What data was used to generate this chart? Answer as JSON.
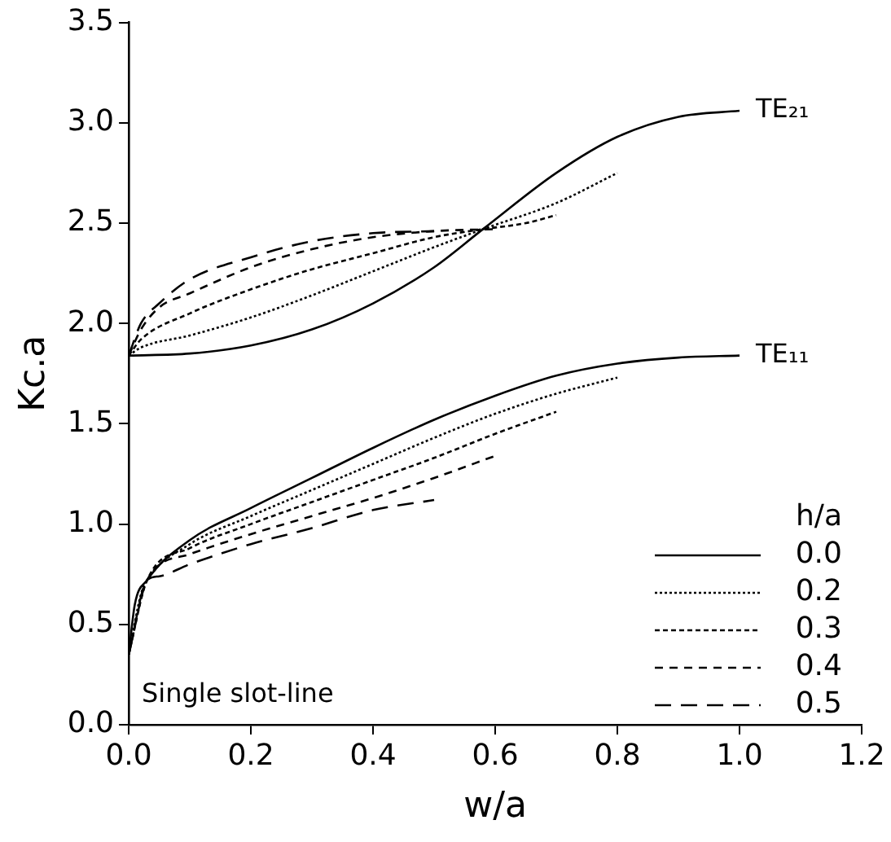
{
  "chart_data": {
    "type": "line",
    "xlabel": "w/a",
    "ylabel": "Kc.a",
    "legend_title": "h/a",
    "legend": "bottom right",
    "grid": false,
    "marker": "none",
    "xlim": [
      0,
      1.2
    ],
    "xticks": [
      {
        "value": 0,
        "label": "0.0"
      },
      {
        "value": 0.2,
        "label": "0.2"
      },
      {
        "value": 0.4,
        "label": "0.4"
      },
      {
        "value": 0.6,
        "label": "0.6"
      },
      {
        "value": 0.8,
        "label": "0.8"
      },
      {
        "value": 1,
        "label": "1.0"
      },
      {
        "value": 1.2,
        "label": "1.2"
      }
    ],
    "ylim": [
      0,
      3.5
    ],
    "yticks": [
      {
        "value": 0,
        "label": "0.0"
      },
      {
        "value": 0.5,
        "label": "0.5"
      },
      {
        "value": 1,
        "label": "1.0"
      },
      {
        "value": 1.5,
        "label": "1.5"
      },
      {
        "value": 2,
        "label": "2.0"
      },
      {
        "value": 2.5,
        "label": "2.5"
      },
      {
        "value": 3,
        "label": "3.0"
      },
      {
        "value": 3.5,
        "label": "3.5"
      }
    ],
    "annotations": [
      {
        "text": "TE₂₁",
        "x": 1.0,
        "y": 3.06
      },
      {
        "text": "TE₁₁",
        "x": 1.0,
        "y": 1.84
      },
      "Single slot-line"
    ],
    "series": [
      {
        "name": "0.0",
        "color": "#000000",
        "line_style": "solid",
        "x": [
          0,
          0.1,
          0.2,
          0.3,
          0.4,
          0.5,
          0.58,
          0.7,
          0.8,
          0.9,
          1.0
        ],
        "values": [
          1.84,
          1.85,
          1.89,
          1.97,
          2.1,
          2.28,
          2.47,
          2.75,
          2.93,
          3.03,
          3.06
        ]
      },
      {
        "name": "0.2",
        "color": "#000000",
        "line_style": "dotted",
        "x": [
          0,
          0.02,
          0.1,
          0.2,
          0.3,
          0.4,
          0.5,
          0.58,
          0.7,
          0.8
        ],
        "values": [
          1.84,
          1.88,
          1.94,
          2.03,
          2.14,
          2.26,
          2.38,
          2.47,
          2.6,
          2.75
        ]
      },
      {
        "name": "0.3",
        "color": "#000000",
        "line_style": "dotted",
        "x": [
          0,
          0.02,
          0.1,
          0.2,
          0.3,
          0.4,
          0.5,
          0.58,
          0.65,
          0.7
        ],
        "values": [
          1.84,
          1.92,
          2.05,
          2.17,
          2.27,
          2.35,
          2.43,
          2.47,
          2.5,
          2.54
        ]
      },
      {
        "name": "0.4",
        "color": "#000000",
        "line_style": "dashed",
        "x": [
          0,
          0.02,
          0.05,
          0.1,
          0.2,
          0.3,
          0.4,
          0.5,
          0.6
        ],
        "values": [
          1.84,
          1.97,
          2.08,
          2.15,
          2.28,
          2.37,
          2.43,
          2.46,
          2.47
        ]
      },
      {
        "name": "0.5",
        "color": "#000000",
        "line_style": "dashed",
        "x": [
          0,
          0.02,
          0.05,
          0.1,
          0.2,
          0.3,
          0.4,
          0.5
        ],
        "values": [
          1.84,
          2.0,
          2.1,
          2.22,
          2.33,
          2.41,
          2.45,
          2.46
        ]
      },
      {
        "color": "#000000",
        "line_style": "solid",
        "x": [
          0,
          0.01,
          0.03,
          0.1,
          0.2,
          0.3,
          0.4,
          0.5,
          0.6,
          0.7,
          0.8,
          0.9,
          1.0
        ],
        "values": [
          0.35,
          0.6,
          0.72,
          0.92,
          1.08,
          1.23,
          1.38,
          1.52,
          1.64,
          1.74,
          1.8,
          1.83,
          1.84
        ]
      },
      {
        "color": "#000000",
        "line_style": "dotted",
        "x": [
          0,
          0.02,
          0.03,
          0.1,
          0.2,
          0.3,
          0.4,
          0.5,
          0.6,
          0.7,
          0.8
        ],
        "values": [
          0.35,
          0.65,
          0.72,
          0.9,
          1.04,
          1.17,
          1.3,
          1.43,
          1.55,
          1.65,
          1.73
        ]
      },
      {
        "color": "#000000",
        "line_style": "dotted",
        "x": [
          0,
          0.03,
          0.1,
          0.2,
          0.3,
          0.4,
          0.5,
          0.6,
          0.7
        ],
        "values": [
          0.35,
          0.72,
          0.88,
          1.0,
          1.11,
          1.22,
          1.33,
          1.45,
          1.56
        ]
      },
      {
        "color": "#000000",
        "line_style": "dashed",
        "x": [
          0,
          0.03,
          0.1,
          0.2,
          0.3,
          0.4,
          0.5,
          0.6
        ],
        "values": [
          0.35,
          0.72,
          0.85,
          0.95,
          1.04,
          1.13,
          1.23,
          1.34
        ]
      },
      {
        "color": "#000000",
        "line_style": "dashed",
        "x": [
          0,
          0.03,
          0.05,
          0.1,
          0.2,
          0.3,
          0.4,
          0.5
        ],
        "values": [
          0.35,
          0.72,
          0.74,
          0.8,
          0.9,
          0.98,
          1.07,
          1.12
        ]
      }
    ]
  }
}
